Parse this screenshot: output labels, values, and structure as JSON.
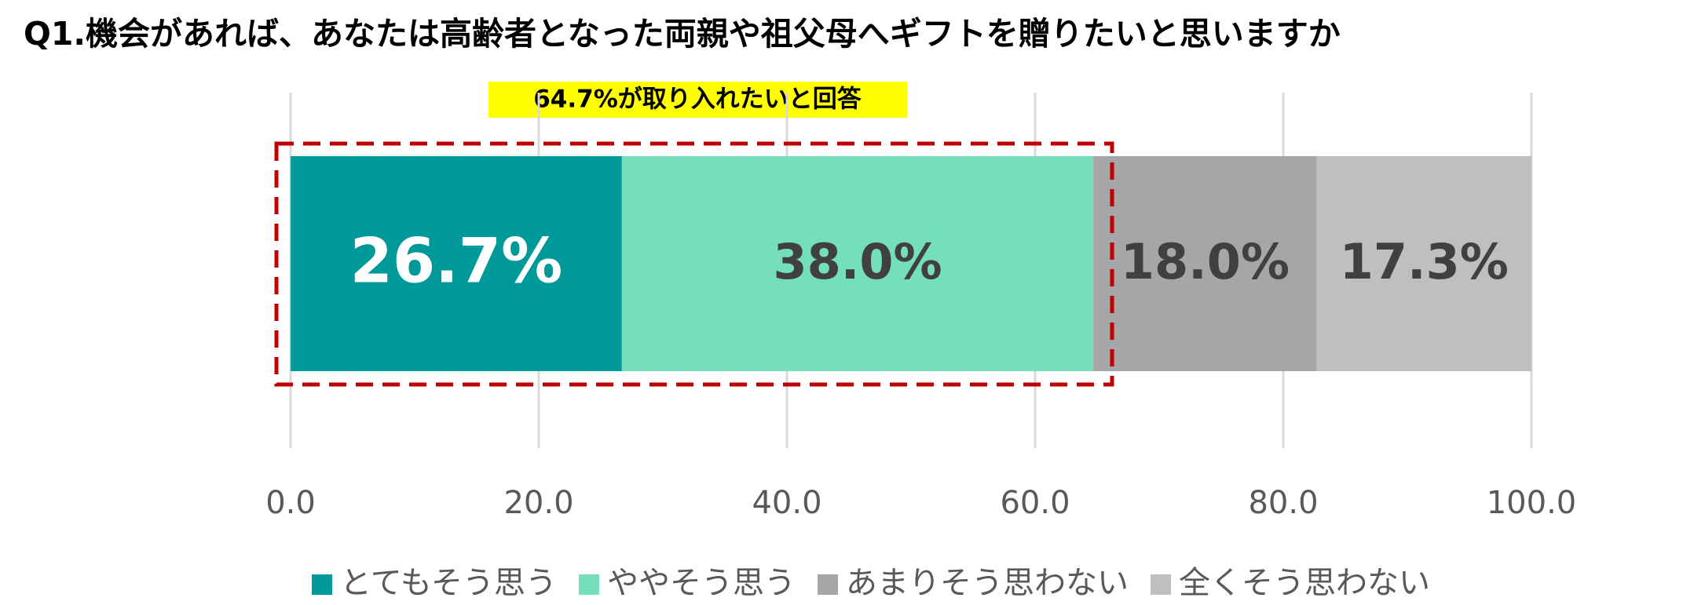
{
  "chart_data": {
    "type": "stacked-bar-horizontal",
    "title": "Q1.機会があれば、あなたは高齢者となった両親や祖父母へギフトを贈りたいと思いますか",
    "annotation": "64.7%が取り入れたいと回答",
    "series": [
      {
        "name": "とてもそう思う",
        "color": "#009999",
        "label_color": "#ffffff",
        "values": [
          26.7
        ],
        "value_labels": [
          "26.7%"
        ]
      },
      {
        "name": "ややそう思う",
        "color": "#74dfb9",
        "label_color": "#404040",
        "values": [
          38.0
        ],
        "value_labels": [
          "38.0%"
        ]
      },
      {
        "name": "あまりそう思わない",
        "color": "#a6a6a6",
        "label_color": "#404040",
        "values": [
          18.0
        ],
        "value_labels": [
          "18.0%"
        ]
      },
      {
        "name": "全くそう思わない",
        "color": "#bfbfbf",
        "label_color": "#404040",
        "values": [
          17.3
        ],
        "value_labels": [
          "17.3%"
        ]
      }
    ],
    "xlim": [
      0,
      100
    ],
    "xticks": [
      {
        "value": 0,
        "label": "0.0"
      },
      {
        "value": 20,
        "label": "20.0"
      },
      {
        "value": 40,
        "label": "40.0"
      },
      {
        "value": 60,
        "label": "60.0"
      },
      {
        "value": 80,
        "label": "80.0"
      },
      {
        "value": 100,
        "label": "100.0"
      }
    ],
    "grid": true,
    "legend": "bottom"
  }
}
